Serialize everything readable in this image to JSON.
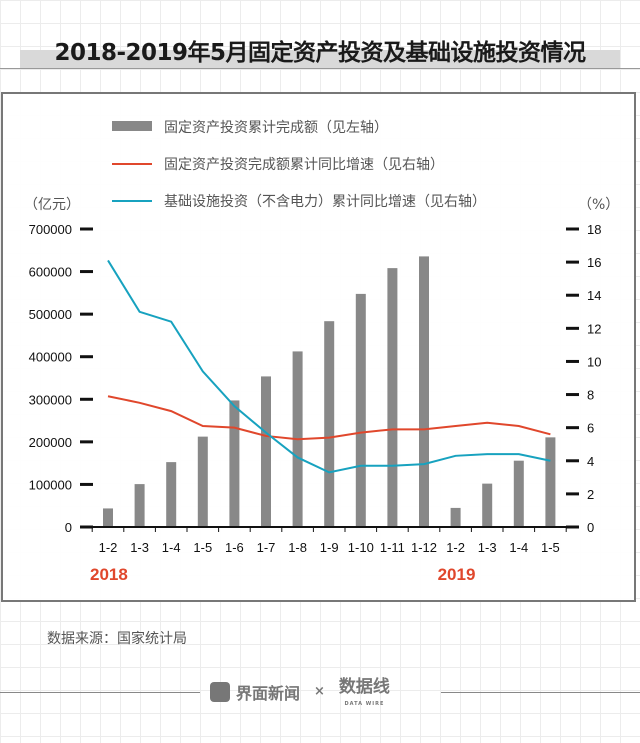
{
  "title": "2018-2019年5月固定资产投资及基础设施投资情况",
  "source": "数据来源：国家统计局",
  "footer": {
    "brand": "界面新闻",
    "times": "×",
    "partner": "数据线",
    "partner_sub": "DATA WIRE"
  },
  "colors": {
    "bar": "#888888",
    "red": "#e0472c",
    "blue": "#17a2bf",
    "year": "#e0472c"
  },
  "chart_data": {
    "type": "bar+line",
    "title": "2018-2019年5月固定资产投资及基础设施投资情况",
    "categories": [
      "1-2",
      "1-3",
      "1-4",
      "1-5",
      "1-6",
      "1-7",
      "1-8",
      "1-9",
      "1-10",
      "1-11",
      "1-12",
      "1-2",
      "1-3",
      "1-4",
      "1-5"
    ],
    "year_labels": [
      {
        "text": "2018",
        "index": 0
      },
      {
        "text": "2019",
        "index": 11
      }
    ],
    "ylabel_left": "（亿元）",
    "ylabel_right": "（%）",
    "ylim_left": [
      0,
      700000
    ],
    "ylim_right": [
      0,
      18
    ],
    "yticks_left": [
      "0",
      "100000",
      "200000",
      "300000",
      "400000",
      "500000",
      "600000",
      "700000"
    ],
    "yticks_right": [
      "0",
      "2",
      "4",
      "6",
      "8",
      "10",
      "12",
      "14",
      "16",
      "18"
    ],
    "series": [
      {
        "name": "固定资产投资累计完成额（见左轴）",
        "type": "bar",
        "axis": "left",
        "values": [
          43625,
          100763,
          152415,
          212292,
          297316,
          353724,
          412453,
          483442,
          547567,
          608102,
          635636,
          44849,
          101871,
          155747,
          210570
        ]
      },
      {
        "name": "固定资产投资完成额累计同比增速（见右轴）",
        "type": "line",
        "axis": "right",
        "color": "#e0472c",
        "values": [
          7.9,
          7.5,
          7.0,
          6.1,
          6.0,
          5.5,
          5.3,
          5.4,
          5.7,
          5.9,
          5.9,
          6.1,
          6.3,
          6.1,
          5.6
        ]
      },
      {
        "name": "基础设施投资（不含电力）累计同比增速（见右轴）",
        "type": "line",
        "axis": "right",
        "color": "#17a2bf",
        "values": [
          16.1,
          13.0,
          12.4,
          9.4,
          7.3,
          5.7,
          4.2,
          3.3,
          3.7,
          3.7,
          3.8,
          4.3,
          4.4,
          4.4,
          4.0
        ]
      }
    ],
    "legend": "top-center"
  }
}
